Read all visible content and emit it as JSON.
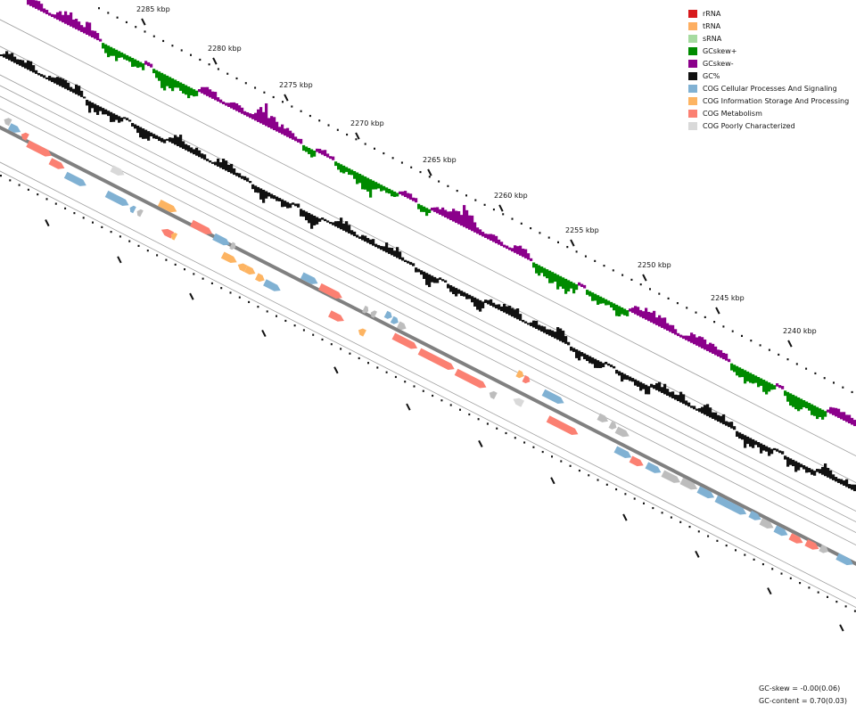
{
  "legend": {
    "items": [
      {
        "label": "rRNA",
        "color": "#d7191c"
      },
      {
        "label": "tRNA",
        "color": "#fdae61"
      },
      {
        "label": "sRNA",
        "color": "#a6dba0"
      },
      {
        "label": "GCskew+",
        "color": "#008b00"
      },
      {
        "label": "GCskew-",
        "color": "#8b008b"
      },
      {
        "label": "GC%",
        "color": "#111111"
      },
      {
        "label": "COG Cellular Processes And Signaling",
        "color": "#80b1d3"
      },
      {
        "label": "COG Information Storage And Processing",
        "color": "#fdb462"
      },
      {
        "label": "COG Metabolism",
        "color": "#fb8072"
      },
      {
        "label": "COG Poorly Characterized",
        "color": "#d9d9d9"
      }
    ]
  },
  "ticks": [
    "2285 kbp",
    "2280 kbp",
    "2275 kbp",
    "2270 kbp",
    "2265 kbp",
    "2260 kbp",
    "2255 kbp",
    "2250 kbp",
    "2245 kbp",
    "2240 kbp"
  ],
  "stats": {
    "gc_skew": "GC-skew = -0.00(0.06)",
    "gc_content": "GC-content = 0.70(0.03)"
  },
  "colors": {
    "backbone": "#808080",
    "track_line": "#a0a0a0",
    "grey_feature": "#bdbdbd"
  }
}
